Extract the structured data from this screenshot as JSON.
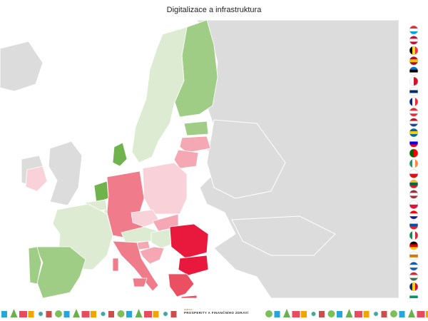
{
  "title": "Digitalizace a infrastruktura",
  "colors": {
    "background_land": "#dcdcdc",
    "border": "#ffffff",
    "sea": "#ffffff",
    "scale_high_green": "#9fcd86",
    "scale_mid_green": "#c2e0ae",
    "scale_light_green": "#dcebd1",
    "scale_green_strong": "#6eb34c",
    "scale_light_pink": "#f8d2d8",
    "scale_pink": "#f5a8b4",
    "scale_salmon": "#ef7b8b",
    "scale_red": "#ea4f62",
    "scale_strong_red": "#e8193c"
  },
  "map": {
    "region": "European Union",
    "countries": [
      {
        "name": "Finland",
        "shade": "scale_high_green"
      },
      {
        "name": "Sweden",
        "shade": "scale_light_green"
      },
      {
        "name": "Denmark",
        "shade": "scale_green_strong"
      },
      {
        "name": "Estonia",
        "shade": "scale_high_green"
      },
      {
        "name": "Latvia",
        "shade": "scale_pink"
      },
      {
        "name": "Lithuania",
        "shade": "scale_pink"
      },
      {
        "name": "Ireland",
        "shade": "scale_light_pink"
      },
      {
        "name": "Netherlands",
        "shade": "scale_green_strong"
      },
      {
        "name": "Belgium",
        "shade": "scale_light_green"
      },
      {
        "name": "Luxembourg",
        "shade": "scale_light_green"
      },
      {
        "name": "Germany",
        "shade": "scale_salmon"
      },
      {
        "name": "Poland",
        "shade": "scale_light_pink"
      },
      {
        "name": "Czechia",
        "shade": "scale_light_pink"
      },
      {
        "name": "Slovakia",
        "shade": "scale_pink"
      },
      {
        "name": "Austria",
        "shade": "scale_light_green"
      },
      {
        "name": "Hungary",
        "shade": "scale_light_green"
      },
      {
        "name": "France",
        "shade": "scale_light_green"
      },
      {
        "name": "Spain",
        "shade": "scale_high_green"
      },
      {
        "name": "Portugal",
        "shade": "scale_high_green"
      },
      {
        "name": "Italy",
        "shade": "scale_salmon"
      },
      {
        "name": "Slovenia",
        "shade": "scale_pink"
      },
      {
        "name": "Croatia",
        "shade": "scale_pink"
      },
      {
        "name": "Romania",
        "shade": "scale_strong_red"
      },
      {
        "name": "Bulgaria",
        "shade": "scale_strong_red"
      },
      {
        "name": "Greece",
        "shade": "scale_red"
      },
      {
        "name": "Cyprus",
        "shade": "scale_pink"
      },
      {
        "name": "Malta",
        "shade": "scale_salmon"
      }
    ]
  },
  "flags": [
    {
      "name": "Luxembourg-flag-icon",
      "stripes": [
        "#ed2939",
        "#ffffff",
        "#00a1de"
      ],
      "dir": "h"
    },
    {
      "name": "Denmark-flag-icon",
      "stripes": [
        "#c60c30",
        "#ffffff",
        "#c60c30"
      ],
      "dir": "h"
    },
    {
      "name": "Belgium-flag-icon",
      "stripes": [
        "#000000",
        "#fdda24",
        "#ef3340"
      ],
      "dir": "v"
    },
    {
      "name": "Spain-flag-icon",
      "stripes": [
        "#aa151b",
        "#f1bf00",
        "#aa151b"
      ],
      "dir": "h"
    },
    {
      "name": "Estonia-flag-icon",
      "stripes": [
        "#0072ce",
        "#000000",
        "#ffffff"
      ],
      "dir": "h"
    },
    {
      "name": "Malta-flag-icon",
      "stripes": [
        "#ffffff",
        "#cf142b"
      ],
      "dir": "v"
    },
    {
      "name": "Finland-flag-icon",
      "stripes": [
        "#ffffff",
        "#002f6c",
        "#ffffff"
      ],
      "dir": "h"
    },
    {
      "name": "France-flag-icon",
      "stripes": [
        "#002395",
        "#ffffff",
        "#ed2939"
      ],
      "dir": "v"
    },
    {
      "name": "Austria-flag-icon",
      "stripes": [
        "#ed2939",
        "#ffffff",
        "#ed2939"
      ],
      "dir": "h"
    },
    {
      "name": "Netherlands-flag-icon",
      "stripes": [
        "#ae1c28",
        "#ffffff",
        "#21468b"
      ],
      "dir": "h"
    },
    {
      "name": "Sweden-flag-icon",
      "stripes": [
        "#006aa7",
        "#fecc00",
        "#006aa7"
      ],
      "dir": "h"
    },
    {
      "name": "Slovenia-flag-icon",
      "stripes": [
        "#ffffff",
        "#0000ff",
        "#ff0000"
      ],
      "dir": "h"
    },
    {
      "name": "Portugal-flag-icon",
      "stripes": [
        "#006600",
        "#ff0000"
      ],
      "dir": "v"
    },
    {
      "name": "Ireland-flag-icon",
      "stripes": [
        "#169b62",
        "#ffffff",
        "#ff883e"
      ],
      "dir": "v"
    },
    {
      "name": "Czechia-flag-icon",
      "stripes": [
        "#ffffff",
        "#d7141a"
      ],
      "dir": "h"
    },
    {
      "name": "Lithuania-flag-icon",
      "stripes": [
        "#fdb913",
        "#006a44",
        "#c1272d"
      ],
      "dir": "h"
    },
    {
      "name": "Latvia-flag-icon",
      "stripes": [
        "#9e3039",
        "#ffffff",
        "#9e3039"
      ],
      "dir": "h"
    },
    {
      "name": "Poland-flag-icon",
      "stripes": [
        "#ffffff",
        "#dc143c"
      ],
      "dir": "h"
    },
    {
      "name": "Croatia-flag-icon",
      "stripes": [
        "#ff0000",
        "#ffffff",
        "#171796"
      ],
      "dir": "h"
    },
    {
      "name": "Slovakia-flag-icon",
      "stripes": [
        "#ffffff",
        "#0b4ea2",
        "#ee1c25"
      ],
      "dir": "h"
    },
    {
      "name": "Italy-flag-icon",
      "stripes": [
        "#009246",
        "#ffffff",
        "#ce2b37"
      ],
      "dir": "v"
    },
    {
      "name": "Germany-flag-icon",
      "stripes": [
        "#000000",
        "#dd0000",
        "#ffce00"
      ],
      "dir": "h"
    },
    {
      "name": "Cyprus-flag-icon",
      "stripes": [
        "#ffffff",
        "#d57800",
        "#ffffff"
      ],
      "dir": "h"
    },
    {
      "name": "Greece-flag-icon",
      "stripes": [
        "#0d5eaf",
        "#ffffff",
        "#0d5eaf"
      ],
      "dir": "h"
    },
    {
      "name": "Hungary-flag-icon",
      "stripes": [
        "#cd2a3e",
        "#ffffff",
        "#436f4d"
      ],
      "dir": "h"
    },
    {
      "name": "Romania-flag-icon",
      "stripes": [
        "#002b7f",
        "#fcd116",
        "#ce1126"
      ],
      "dir": "v"
    },
    {
      "name": "Bulgaria-flag-icon",
      "stripes": [
        "#ffffff",
        "#00966e",
        "#d62612"
      ],
      "dir": "h"
    }
  ],
  "footer": {
    "brand_top": "INDEX",
    "brand_main": "PROSPERITY A FINANČNÍHO ZDRAVÍ",
    "icons": [
      "cloud-icon",
      "tree-icon",
      "bus-icon",
      "house-icon",
      "gear-icon",
      "factory-icon",
      "globe-icon"
    ]
  }
}
